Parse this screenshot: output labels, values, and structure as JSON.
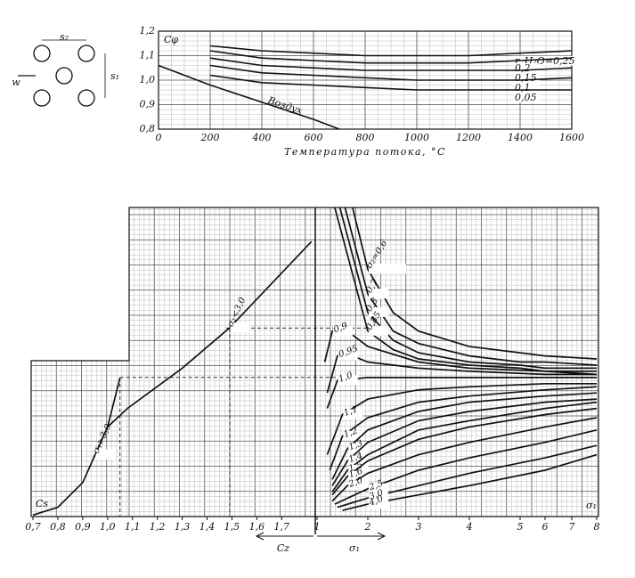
{
  "diagram": {
    "labels": [
      "s₂",
      "s₁",
      "w"
    ]
  },
  "chart_data": [
    {
      "type": "line",
      "y_label": "Cφ",
      "x_label": "Температура потока, °C",
      "grid": true,
      "xlim": [
        0,
        1600
      ],
      "xticks": [
        0,
        200,
        400,
        600,
        800,
        1000,
        1200,
        1400,
        1600
      ],
      "ylim": [
        0.8,
        1.2
      ],
      "yticks": [
        {
          "value": 0.8,
          "label": "0,8"
        },
        {
          "value": 0.9,
          "label": "0,9"
        },
        {
          "value": 1.0,
          "label": "1,0"
        },
        {
          "value": 1.1,
          "label": "1,1"
        },
        {
          "value": 1.2,
          "label": "1,2"
        }
      ],
      "series": [
        {
          "name": "r_H₂O=0,25",
          "color": "#111",
          "x": [
            200,
            400,
            600,
            800,
            1000,
            1200,
            1400,
            1600
          ],
          "values": [
            1.14,
            1.12,
            1.11,
            1.1,
            1.1,
            1.1,
            1.11,
            1.12
          ]
        },
        {
          "name": "0,2",
          "color": "#111",
          "x": [
            200,
            400,
            600,
            800,
            1000,
            1200,
            1400,
            1600
          ],
          "values": [
            1.12,
            1.09,
            1.08,
            1.07,
            1.07,
            1.07,
            1.08,
            1.09
          ]
        },
        {
          "name": "0,15",
          "color": "#111",
          "x": [
            200,
            400,
            600,
            800,
            1000,
            1200,
            1400,
            1600
          ],
          "values": [
            1.09,
            1.06,
            1.05,
            1.04,
            1.04,
            1.04,
            1.04,
            1.05
          ]
        },
        {
          "name": "0,1",
          "color": "#111",
          "x": [
            200,
            400,
            600,
            800,
            1000,
            1200,
            1400,
            1600
          ],
          "values": [
            1.06,
            1.03,
            1.02,
            1.01,
            1.0,
            1.0,
            1.0,
            1.01
          ]
        },
        {
          "name": "0,05",
          "color": "#111",
          "x": [
            200,
            400,
            600,
            800,
            1000,
            1200,
            1400,
            1600
          ],
          "values": [
            1.02,
            0.99,
            0.98,
            0.97,
            0.96,
            0.96,
            0.96,
            0.96
          ]
        },
        {
          "name": "Воздух",
          "color": "#111",
          "x": [
            0,
            200,
            400,
            600,
            700
          ],
          "values": [
            1.06,
            0.98,
            0.91,
            0.84,
            0.8
          ]
        }
      ]
    },
    {
      "type": "line",
      "y_label": "Cs",
      "x_label": "Cz",
      "x2_label": "σ₁",
      "x2_label_end": "σ₁",
      "xlim": [
        0.7,
        1.835
      ],
      "xticks": [
        {
          "value": 0.7,
          "label": "0,7"
        },
        {
          "value": 0.8,
          "label": "0,8"
        },
        {
          "value": 0.9,
          "label": "0,9"
        },
        {
          "value": 1.0,
          "label": "1,0"
        },
        {
          "value": 1.1,
          "label": "1,1"
        },
        {
          "value": 1.2,
          "label": "1,2"
        },
        {
          "value": 1.3,
          "label": "1,3"
        },
        {
          "value": 1.4,
          "label": "1,4"
        },
        {
          "value": 1.5,
          "label": "1,5"
        },
        {
          "value": 1.6,
          "label": "1,6"
        },
        {
          "value": 1.7,
          "label": "1,7"
        }
      ],
      "x2lim": [
        1,
        8
      ],
      "x2ticks": [
        1,
        2,
        3,
        4,
        5,
        6,
        7,
        8
      ],
      "ylim": [
        0,
        1
      ],
      "series": [
        {
          "name": "σ₁>3,0",
          "axis": "x",
          "color": "#111",
          "x": [
            0.7,
            0.8,
            0.9,
            0.95,
            1.0,
            1.05
          ],
          "values": [
            0.005,
            0.03,
            0.11,
            0.2,
            0.29,
            0.45
          ]
        },
        {
          "name": "σ₁<3,0",
          "axis": "x",
          "color": "#111",
          "x": [
            1.0,
            1.08,
            1.3,
            1.49,
            1.82
          ],
          "values": [
            0.29,
            0.35,
            0.48,
            0.61,
            0.89
          ]
        },
        {
          "name": "σ₂=0,6",
          "axis": "x2",
          "color": "#111",
          "x": [
            1.7,
            2,
            2.5,
            3,
            4,
            5,
            6,
            8
          ],
          "values": [
            1.0,
            0.8,
            0.66,
            0.6,
            0.55,
            0.53,
            0.52,
            0.51
          ]
        },
        {
          "name": "0,7",
          "axis": "x2",
          "color": "#111",
          "x": [
            1.55,
            2,
            2.5,
            3,
            4,
            5,
            6,
            8
          ],
          "values": [
            1.0,
            0.72,
            0.6,
            0.56,
            0.52,
            0.5,
            0.5,
            0.49
          ]
        },
        {
          "name": "0,8",
          "axis": "x2",
          "color": "#111",
          "x": [
            1.45,
            2,
            2.5,
            3,
            4,
            5,
            6,
            8
          ],
          "values": [
            1.0,
            0.66,
            0.57,
            0.53,
            0.5,
            0.49,
            0.48,
            0.48
          ]
        },
        {
          "name": "0,85",
          "axis": "x2",
          "color": "#111",
          "x": [
            1.35,
            2,
            2.5,
            3,
            4,
            5,
            6,
            8
          ],
          "values": [
            1.0,
            0.6,
            0.54,
            0.51,
            0.49,
            0.48,
            0.47,
            0.47
          ]
        },
        {
          "name": "0,9",
          "axis": "x2",
          "color": "#111",
          "x": [
            1.15,
            1.3,
            1.6,
            2,
            3,
            4,
            6,
            8
          ],
          "values": [
            0.5,
            0.6,
            0.6,
            0.55,
            0.5,
            0.48,
            0.47,
            0.46
          ]
        },
        {
          "name": "0,95",
          "axis": "x2",
          "color": "#111",
          "x": [
            1.2,
            1.4,
            1.7,
            2,
            3,
            4,
            6,
            8
          ],
          "values": [
            0.4,
            0.52,
            0.52,
            0.5,
            0.48,
            0.47,
            0.46,
            0.46
          ]
        },
        {
          "name": "1,0",
          "axis": "x2",
          "color": "#111",
          "x": [
            1.2,
            1.4,
            2,
            3,
            4,
            6,
            8
          ],
          "values": [
            0.35,
            0.44,
            0.45,
            0.45,
            0.45,
            0.45,
            0.45
          ]
        },
        {
          "name": "1,1",
          "axis": "x2",
          "color": "#111",
          "x": [
            1.2,
            1.5,
            2,
            3,
            4,
            6,
            8
          ],
          "values": [
            0.2,
            0.33,
            0.38,
            0.41,
            0.42,
            0.43,
            0.43
          ]
        },
        {
          "name": "1,2",
          "axis": "x2",
          "color": "#111",
          "x": [
            1.25,
            1.5,
            2,
            3,
            4,
            6,
            8
          ],
          "values": [
            0.15,
            0.26,
            0.32,
            0.37,
            0.39,
            0.41,
            0.42
          ]
        },
        {
          "name": "1,3",
          "axis": "x2",
          "color": "#111",
          "x": [
            1.3,
            1.6,
            2,
            3,
            4,
            6,
            8
          ],
          "values": [
            0.12,
            0.22,
            0.28,
            0.34,
            0.37,
            0.39,
            0.4
          ]
        },
        {
          "name": "1,4",
          "axis": "x2",
          "color": "#111",
          "x": [
            1.3,
            1.6,
            2,
            3,
            4,
            6,
            8
          ],
          "values": [
            0.1,
            0.18,
            0.24,
            0.31,
            0.34,
            0.37,
            0.38
          ]
        },
        {
          "name": "1,5",
          "axis": "x2",
          "color": "#111",
          "x": [
            1.3,
            1.6,
            2,
            3,
            4,
            6,
            8
          ],
          "values": [
            0.08,
            0.15,
            0.2,
            0.28,
            0.31,
            0.35,
            0.37
          ]
        },
        {
          "name": "1,6",
          "axis": "x2",
          "color": "#111",
          "x": [
            1.3,
            1.6,
            2,
            3,
            4,
            6,
            8
          ],
          "values": [
            0.07,
            0.13,
            0.18,
            0.25,
            0.29,
            0.33,
            0.35
          ]
        },
        {
          "name": "2,0",
          "axis": "x2",
          "color": "#111",
          "x": [
            1.3,
            1.6,
            2,
            3,
            4,
            6,
            8
          ],
          "values": [
            0.05,
            0.1,
            0.14,
            0.2,
            0.24,
            0.29,
            0.32
          ]
        },
        {
          "name": "2,5",
          "axis": "x2",
          "color": "#111",
          "x": [
            1.35,
            2,
            3,
            4,
            6,
            8
          ],
          "values": [
            0.04,
            0.09,
            0.15,
            0.19,
            0.24,
            0.28
          ]
        },
        {
          "name": "3,0",
          "axis": "x2",
          "color": "#111",
          "x": [
            1.4,
            2,
            3,
            4,
            6,
            8
          ],
          "values": [
            0.03,
            0.06,
            0.1,
            0.14,
            0.19,
            0.23
          ]
        },
        {
          "name": "4,0",
          "axis": "x2",
          "color": "#111",
          "x": [
            1.5,
            2,
            3,
            4,
            6,
            8
          ],
          "values": [
            0.02,
            0.04,
            0.07,
            0.1,
            0.15,
            0.2
          ]
        }
      ]
    }
  ]
}
